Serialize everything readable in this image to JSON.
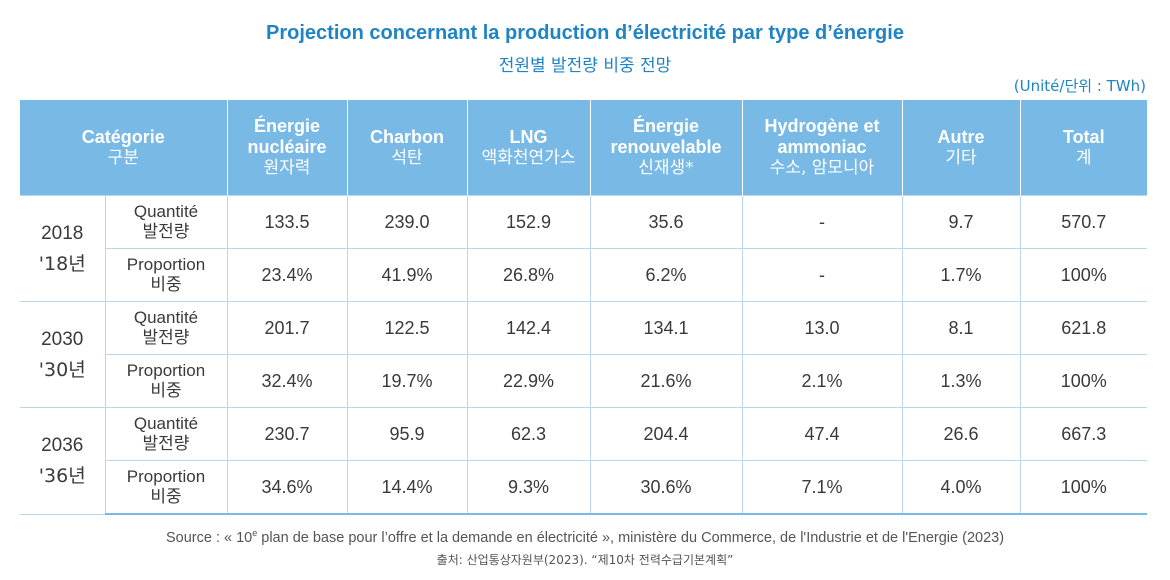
{
  "chart_data": {
    "type": "table",
    "title": "Projection concernant la production d’électricité par type d’énergie",
    "subtitle": "전원별 발전량 비중 전망",
    "unit": "(Unité/단위 : TWh)",
    "columns": [
      {
        "fr": "Catégorie",
        "ko": "구분"
      },
      {
        "fr": "Énergie nucléaire",
        "ko": "원자력"
      },
      {
        "fr": "Charbon",
        "ko": "석탄"
      },
      {
        "fr": "LNG",
        "ko": "액화천연가스"
      },
      {
        "fr": "Énergie renouvelable",
        "ko": "신재생*"
      },
      {
        "fr": "Hydrogène et ammoniac",
        "ko": "수소, 암모니아"
      },
      {
        "fr": "Autre",
        "ko": "기타"
      },
      {
        "fr": "Total",
        "ko": "계"
      }
    ],
    "metric_labels": {
      "quantity": {
        "fr": "Quantité",
        "ko": "발전량"
      },
      "proportion": {
        "fr": "Proportion",
        "ko": "비중"
      }
    },
    "years": [
      {
        "year": "2018",
        "year_ko": "'18년",
        "quantity": [
          "133.5",
          "239.0",
          "152.9",
          "35.6",
          "-",
          "9.7",
          "570.7"
        ],
        "proportion": [
          "23.4%",
          "41.9%",
          "26.8%",
          "6.2%",
          "-",
          "1.7%",
          "100%"
        ]
      },
      {
        "year": "2030",
        "year_ko": "'30년",
        "quantity": [
          "201.7",
          "122.5",
          "142.4",
          "134.1",
          "13.0",
          "8.1",
          "621.8"
        ],
        "proportion": [
          "32.4%",
          "19.7%",
          "22.9%",
          "21.6%",
          "2.1%",
          "1.3%",
          "100%"
        ]
      },
      {
        "year": "2036",
        "year_ko": "'36년",
        "quantity": [
          "230.7",
          "95.9",
          "62.3",
          "204.4",
          "47.4",
          "26.6",
          "667.3"
        ],
        "proportion": [
          "34.6%",
          "14.4%",
          "9.3%",
          "30.6%",
          "7.1%",
          "4.0%",
          "100%"
        ]
      }
    ],
    "source": {
      "prefix": "Source : « 10",
      "superscript": "e",
      "suffix": " plan de base pour l’offre et la demande en électricité », ministère du Commerce, de l'Industrie et de l'Energie (2023)",
      "ko": "출처: 산업통상자원부(2023). “제10차 전력수급기본계획”"
    }
  }
}
